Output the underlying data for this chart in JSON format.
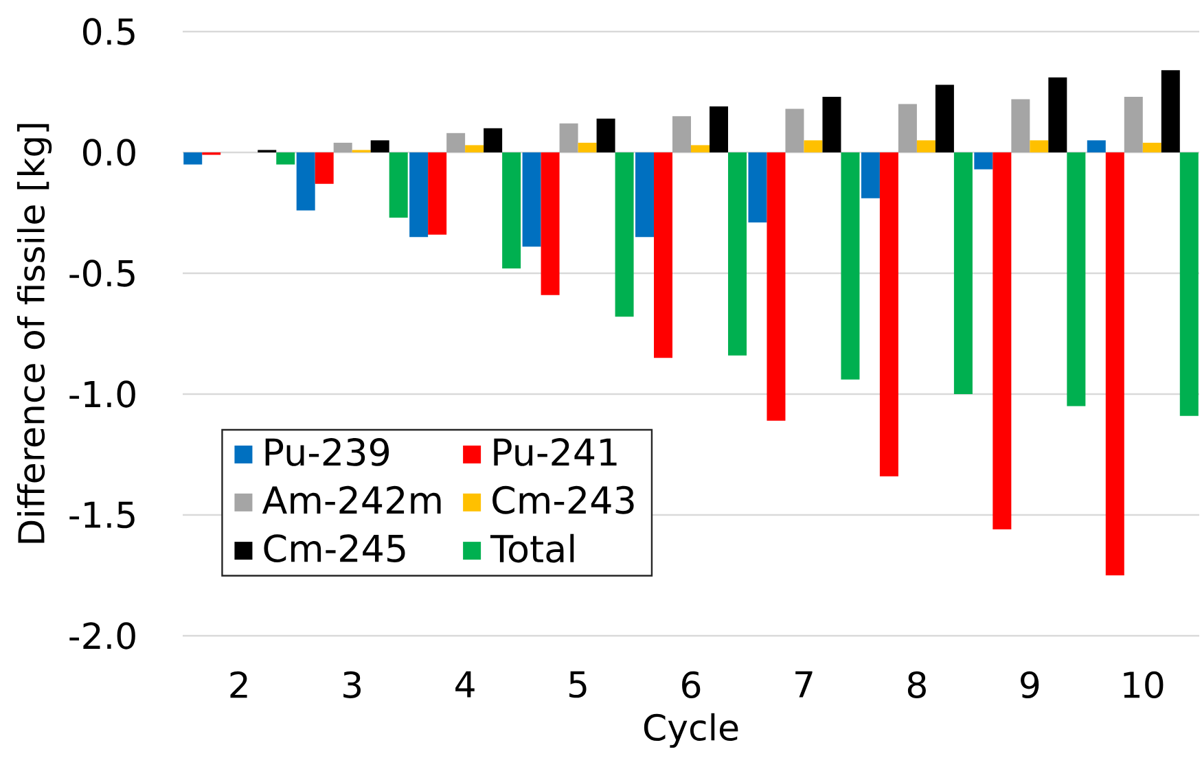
{
  "chart_data": {
    "type": "bar",
    "xlabel": "Cycle",
    "ylabel": "Difference of fissile [kg]",
    "categories": [
      "2",
      "3",
      "4",
      "5",
      "6",
      "7",
      "8",
      "9",
      "10"
    ],
    "series": [
      {
        "name": "Pu-239",
        "color": "#0070c0",
        "values": [
          -0.05,
          -0.24,
          -0.35,
          -0.39,
          -0.35,
          -0.29,
          -0.19,
          -0.07,
          0.05
        ]
      },
      {
        "name": "Pu-241",
        "color": "#ff0000",
        "values": [
          -0.01,
          -0.13,
          -0.34,
          -0.59,
          -0.85,
          -1.11,
          -1.34,
          -1.56,
          -1.75
        ]
      },
      {
        "name": "Am-242m",
        "color": "#a5a5a5",
        "values": [
          0,
          0.04,
          0.08,
          0.12,
          0.15,
          0.18,
          0.2,
          0.22,
          0.23
        ]
      },
      {
        "name": "Cm-243",
        "color": "#ffc000",
        "values": [
          0,
          0.01,
          0.03,
          0.04,
          0.03,
          0.05,
          0.05,
          0.05,
          0.04
        ]
      },
      {
        "name": "Cm-245",
        "color": "#000000",
        "values": [
          0.01,
          0.05,
          0.1,
          0.14,
          0.19,
          0.23,
          0.28,
          0.31,
          0.34
        ]
      },
      {
        "name": "Total",
        "color": "#00b050",
        "values": [
          -0.05,
          -0.27,
          -0.48,
          -0.68,
          -0.84,
          -0.94,
          -1.0,
          -1.05,
          -1.09
        ]
      }
    ],
    "ylim": [
      -2.0,
      0.5
    ],
    "yticks": [
      {
        "value": 0.5,
        "label": "0.5"
      },
      {
        "value": 0,
        "label": "0.0"
      },
      {
        "value": -0.5,
        "label": "-0.5"
      },
      {
        "value": -1,
        "label": "-1.0"
      },
      {
        "value": -1.5,
        "label": "-1.5"
      },
      {
        "value": -2,
        "label": "-2.0"
      }
    ],
    "grid": "y",
    "legend": "bottom left"
  }
}
